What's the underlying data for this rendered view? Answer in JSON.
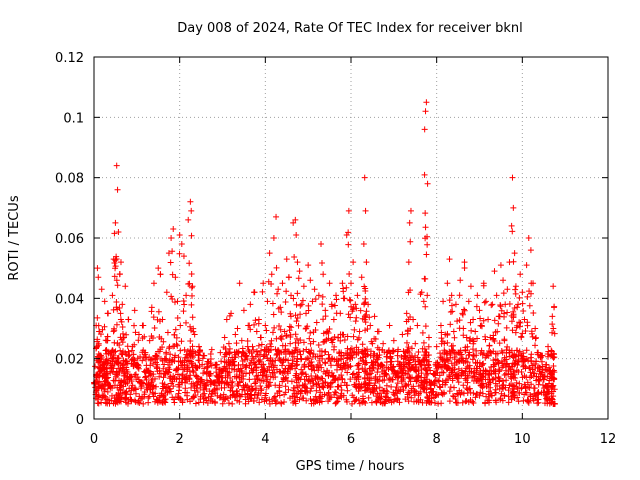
{
  "chart_data": {
    "type": "scatter",
    "title": "Day 008 of 2024, Rate Of TEC Index for receiver bknl",
    "xlabel": "GPS time / hours",
    "ylabel": "ROTI / TECUs",
    "xlim": [
      0,
      12
    ],
    "ylim": [
      0,
      0.12
    ],
    "x_ticks": [
      0,
      2,
      4,
      6,
      8,
      10,
      12
    ],
    "x_tick_labels": [
      "0",
      "2",
      "4",
      "6",
      "8",
      "10",
      "12"
    ],
    "y_ticks": [
      0,
      0.02,
      0.04,
      0.06,
      0.08,
      0.1,
      0.12
    ],
    "y_tick_labels": [
      "0",
      "0.02",
      "0.04",
      "0.06",
      "0.08",
      "0.1",
      "0.12"
    ],
    "grid": true,
    "marker": "+",
    "color": "#ff0000",
    "series": [
      {
        "name": "ROTI",
        "points": [
          [
            0.02,
            0.012
          ],
          [
            0.05,
            0.031
          ],
          [
            0.08,
            0.05
          ],
          [
            0.1,
            0.047
          ],
          [
            0.12,
            0.029
          ],
          [
            0.15,
            0.021
          ],
          [
            0.18,
            0.043
          ],
          [
            0.22,
            0.018
          ],
          [
            0.25,
            0.039
          ],
          [
            0.28,
            0.015
          ],
          [
            0.3,
            0.026
          ],
          [
            0.33,
            0.035
          ],
          [
            0.36,
            0.011
          ],
          [
            0.4,
            0.022
          ],
          [
            0.43,
            0.041
          ],
          [
            0.46,
            0.053
          ],
          [
            0.5,
            0.065
          ],
          [
            0.53,
            0.084
          ],
          [
            0.55,
            0.076
          ],
          [
            0.57,
            0.062
          ],
          [
            0.6,
            0.048
          ],
          [
            0.63,
            0.052
          ],
          [
            0.66,
            0.038
          ],
          [
            0.7,
            0.027
          ],
          [
            0.73,
            0.044
          ],
          [
            0.76,
            0.019
          ],
          [
            0.8,
            0.033
          ],
          [
            0.85,
            0.014
          ],
          [
            0.9,
            0.024
          ],
          [
            0.95,
            0.036
          ],
          [
            1.0,
            0.018
          ],
          [
            1.05,
            0.028
          ],
          [
            1.1,
            0.012
          ],
          [
            1.15,
            0.031
          ],
          [
            1.2,
            0.022
          ],
          [
            1.25,
            0.016
          ],
          [
            1.3,
            0.026
          ],
          [
            1.35,
            0.037
          ],
          [
            1.4,
            0.045
          ],
          [
            1.45,
            0.021
          ],
          [
            1.5,
            0.05
          ],
          [
            1.55,
            0.048
          ],
          [
            1.6,
            0.033
          ],
          [
            1.65,
            0.02
          ],
          [
            1.7,
            0.042
          ],
          [
            1.75,
            0.055
          ],
          [
            1.8,
            0.06
          ],
          [
            1.85,
            0.063
          ],
          [
            1.9,
            0.047
          ],
          [
            1.95,
            0.039
          ],
          [
            2.0,
            0.061
          ],
          [
            2.05,
            0.058
          ],
          [
            2.1,
            0.054
          ],
          [
            2.15,
            0.041
          ],
          [
            2.2,
            0.066
          ],
          [
            2.25,
            0.072
          ],
          [
            2.27,
            0.069
          ],
          [
            2.3,
            0.044
          ],
          [
            2.35,
            0.028
          ],
          [
            2.4,
            0.017
          ],
          [
            2.45,
            0.024
          ],
          [
            2.5,
            0.013
          ],
          [
            2.55,
            0.021
          ],
          [
            2.6,
            0.011
          ],
          [
            2.65,
            0.019
          ],
          [
            2.7,
            0.015
          ],
          [
            2.75,
            0.023
          ],
          [
            2.8,
            0.012
          ],
          [
            2.85,
            0.018
          ],
          [
            2.9,
            0.014
          ],
          [
            2.95,
            0.022
          ],
          [
            3.0,
            0.016
          ],
          [
            3.05,
            0.027
          ],
          [
            3.1,
            0.033
          ],
          [
            3.15,
            0.025
          ],
          [
            3.2,
            0.035
          ],
          [
            3.25,
            0.019
          ],
          [
            3.3,
            0.028
          ],
          [
            3.35,
            0.03
          ],
          [
            3.4,
            0.045
          ],
          [
            3.45,
            0.026
          ],
          [
            3.5,
            0.036
          ],
          [
            3.55,
            0.021
          ],
          [
            3.6,
            0.031
          ],
          [
            3.65,
            0.038
          ],
          [
            3.7,
            0.024
          ],
          [
            3.75,
            0.042
          ],
          [
            3.8,
            0.029
          ],
          [
            3.85,
            0.033
          ],
          [
            3.9,
            0.027
          ],
          [
            3.95,
            0.045
          ],
          [
            4.0,
            0.031
          ],
          [
            4.05,
            0.039
          ],
          [
            4.1,
            0.055
          ],
          [
            4.15,
            0.048
          ],
          [
            4.2,
            0.06
          ],
          [
            4.25,
            0.067
          ],
          [
            4.3,
            0.043
          ],
          [
            4.35,
            0.037
          ],
          [
            4.4,
            0.045
          ],
          [
            4.45,
            0.029
          ],
          [
            4.5,
            0.053
          ],
          [
            4.55,
            0.047
          ],
          [
            4.6,
            0.041
          ],
          [
            4.65,
            0.065
          ],
          [
            4.7,
            0.066
          ],
          [
            4.72,
            0.061
          ],
          [
            4.75,
            0.052
          ],
          [
            4.8,
            0.049
          ],
          [
            4.85,
            0.038
          ],
          [
            4.9,
            0.044
          ],
          [
            4.95,
            0.035
          ],
          [
            5.0,
            0.051
          ],
          [
            5.05,
            0.046
          ],
          [
            5.1,
            0.039
          ],
          [
            5.15,
            0.043
          ],
          [
            5.2,
            0.032
          ],
          [
            5.25,
            0.041
          ],
          [
            5.3,
            0.058
          ],
          [
            5.35,
            0.048
          ],
          [
            5.4,
            0.036
          ],
          [
            5.45,
            0.029
          ],
          [
            5.5,
            0.045
          ],
          [
            5.55,
            0.038
          ],
          [
            5.6,
            0.033
          ],
          [
            5.65,
            0.041
          ],
          [
            5.7,
            0.027
          ],
          [
            5.75,
            0.035
          ],
          [
            5.8,
            0.045
          ],
          [
            5.85,
            0.04
          ],
          [
            5.9,
            0.061
          ],
          [
            5.95,
            0.069
          ],
          [
            6.0,
            0.045
          ],
          [
            6.05,
            0.052
          ],
          [
            6.1,
            0.038
          ],
          [
            6.15,
            0.041
          ],
          [
            6.2,
            0.029
          ],
          [
            6.25,
            0.047
          ],
          [
            6.3,
            0.058
          ],
          [
            6.32,
            0.08
          ],
          [
            6.34,
            0.069
          ],
          [
            6.36,
            0.052
          ],
          [
            6.4,
            0.038
          ],
          [
            6.45,
            0.031
          ],
          [
            6.5,
            0.025
          ],
          [
            6.55,
            0.034
          ],
          [
            6.6,
            0.021
          ],
          [
            6.65,
            0.029
          ],
          [
            6.7,
            0.018
          ],
          [
            6.75,
            0.025
          ],
          [
            6.8,
            0.015
          ],
          [
            6.85,
            0.022
          ],
          [
            6.9,
            0.031
          ],
          [
            6.95,
            0.019
          ],
          [
            7.0,
            0.026
          ],
          [
            7.05,
            0.015
          ],
          [
            7.1,
            0.023
          ],
          [
            7.15,
            0.018
          ],
          [
            7.2,
            0.028
          ],
          [
            7.25,
            0.021
          ],
          [
            7.3,
            0.035
          ],
          [
            7.35,
            0.052
          ],
          [
            7.37,
            0.065
          ],
          [
            7.4,
            0.069
          ],
          [
            7.45,
            0.033
          ],
          [
            7.5,
            0.025
          ],
          [
            7.55,
            0.031
          ],
          [
            7.6,
            0.019
          ],
          [
            7.65,
            0.042
          ],
          [
            7.7,
            0.039
          ],
          [
            7.72,
            0.096
          ],
          [
            7.74,
            0.102
          ],
          [
            7.76,
            0.105
          ],
          [
            7.78,
            0.041
          ],
          [
            7.82,
            0.027
          ],
          [
            7.85,
            0.012
          ],
          [
            7.9,
            0.009
          ],
          [
            7.95,
            0.015
          ],
          [
            8.0,
            0.024
          ],
          [
            8.05,
            0.018
          ],
          [
            8.1,
            0.031
          ],
          [
            8.15,
            0.039
          ],
          [
            8.2,
            0.028
          ],
          [
            8.25,
            0.045
          ],
          [
            8.3,
            0.053
          ],
          [
            8.35,
            0.041
          ],
          [
            8.4,
            0.029
          ],
          [
            8.45,
            0.038
          ],
          [
            8.5,
            0.022
          ],
          [
            8.55,
            0.046
          ],
          [
            8.6,
            0.035
          ],
          [
            8.65,
            0.052
          ],
          [
            8.7,
            0.027
          ],
          [
            8.75,
            0.039
          ],
          [
            8.8,
            0.044
          ],
          [
            8.85,
            0.033
          ],
          [
            8.9,
            0.029
          ],
          [
            8.95,
            0.041
          ],
          [
            9.0,
            0.036
          ],
          [
            9.05,
            0.031
          ],
          [
            9.1,
            0.045
          ],
          [
            9.15,
            0.039
          ],
          [
            9.2,
            0.033
          ],
          [
            9.25,
            0.027
          ],
          [
            9.3,
            0.038
          ],
          [
            9.35,
            0.049
          ],
          [
            9.4,
            0.041
          ],
          [
            9.45,
            0.034
          ],
          [
            9.5,
            0.051
          ],
          [
            9.55,
            0.046
          ],
          [
            9.6,
            0.038
          ],
          [
            9.65,
            0.043
          ],
          [
            9.7,
            0.052
          ],
          [
            9.75,
            0.064
          ],
          [
            9.77,
            0.08
          ],
          [
            9.79,
            0.07
          ],
          [
            9.82,
            0.055
          ],
          [
            9.85,
            0.044
          ],
          [
            9.9,
            0.038
          ],
          [
            9.95,
            0.048
          ],
          [
            10.0,
            0.042
          ],
          [
            10.05,
            0.033
          ],
          [
            10.1,
            0.051
          ],
          [
            10.15,
            0.06
          ],
          [
            10.2,
            0.056
          ],
          [
            10.25,
            0.045
          ],
          [
            10.3,
            0.03
          ],
          [
            10.35,
            0.022
          ],
          [
            10.4,
            0.017
          ],
          [
            10.45,
            0.021
          ],
          [
            10.5,
            0.014
          ],
          [
            10.55,
            0.018
          ],
          [
            10.6,
            0.024
          ],
          [
            10.65,
            0.016
          ],
          [
            10.7,
            0.034
          ],
          [
            10.72,
            0.044
          ],
          [
            10.74,
            0.037
          ],
          [
            10.75,
            0.005
          ],
          [
            10.7,
            0.011
          ],
          [
            10.6,
            0.009
          ]
        ]
      }
    ]
  }
}
